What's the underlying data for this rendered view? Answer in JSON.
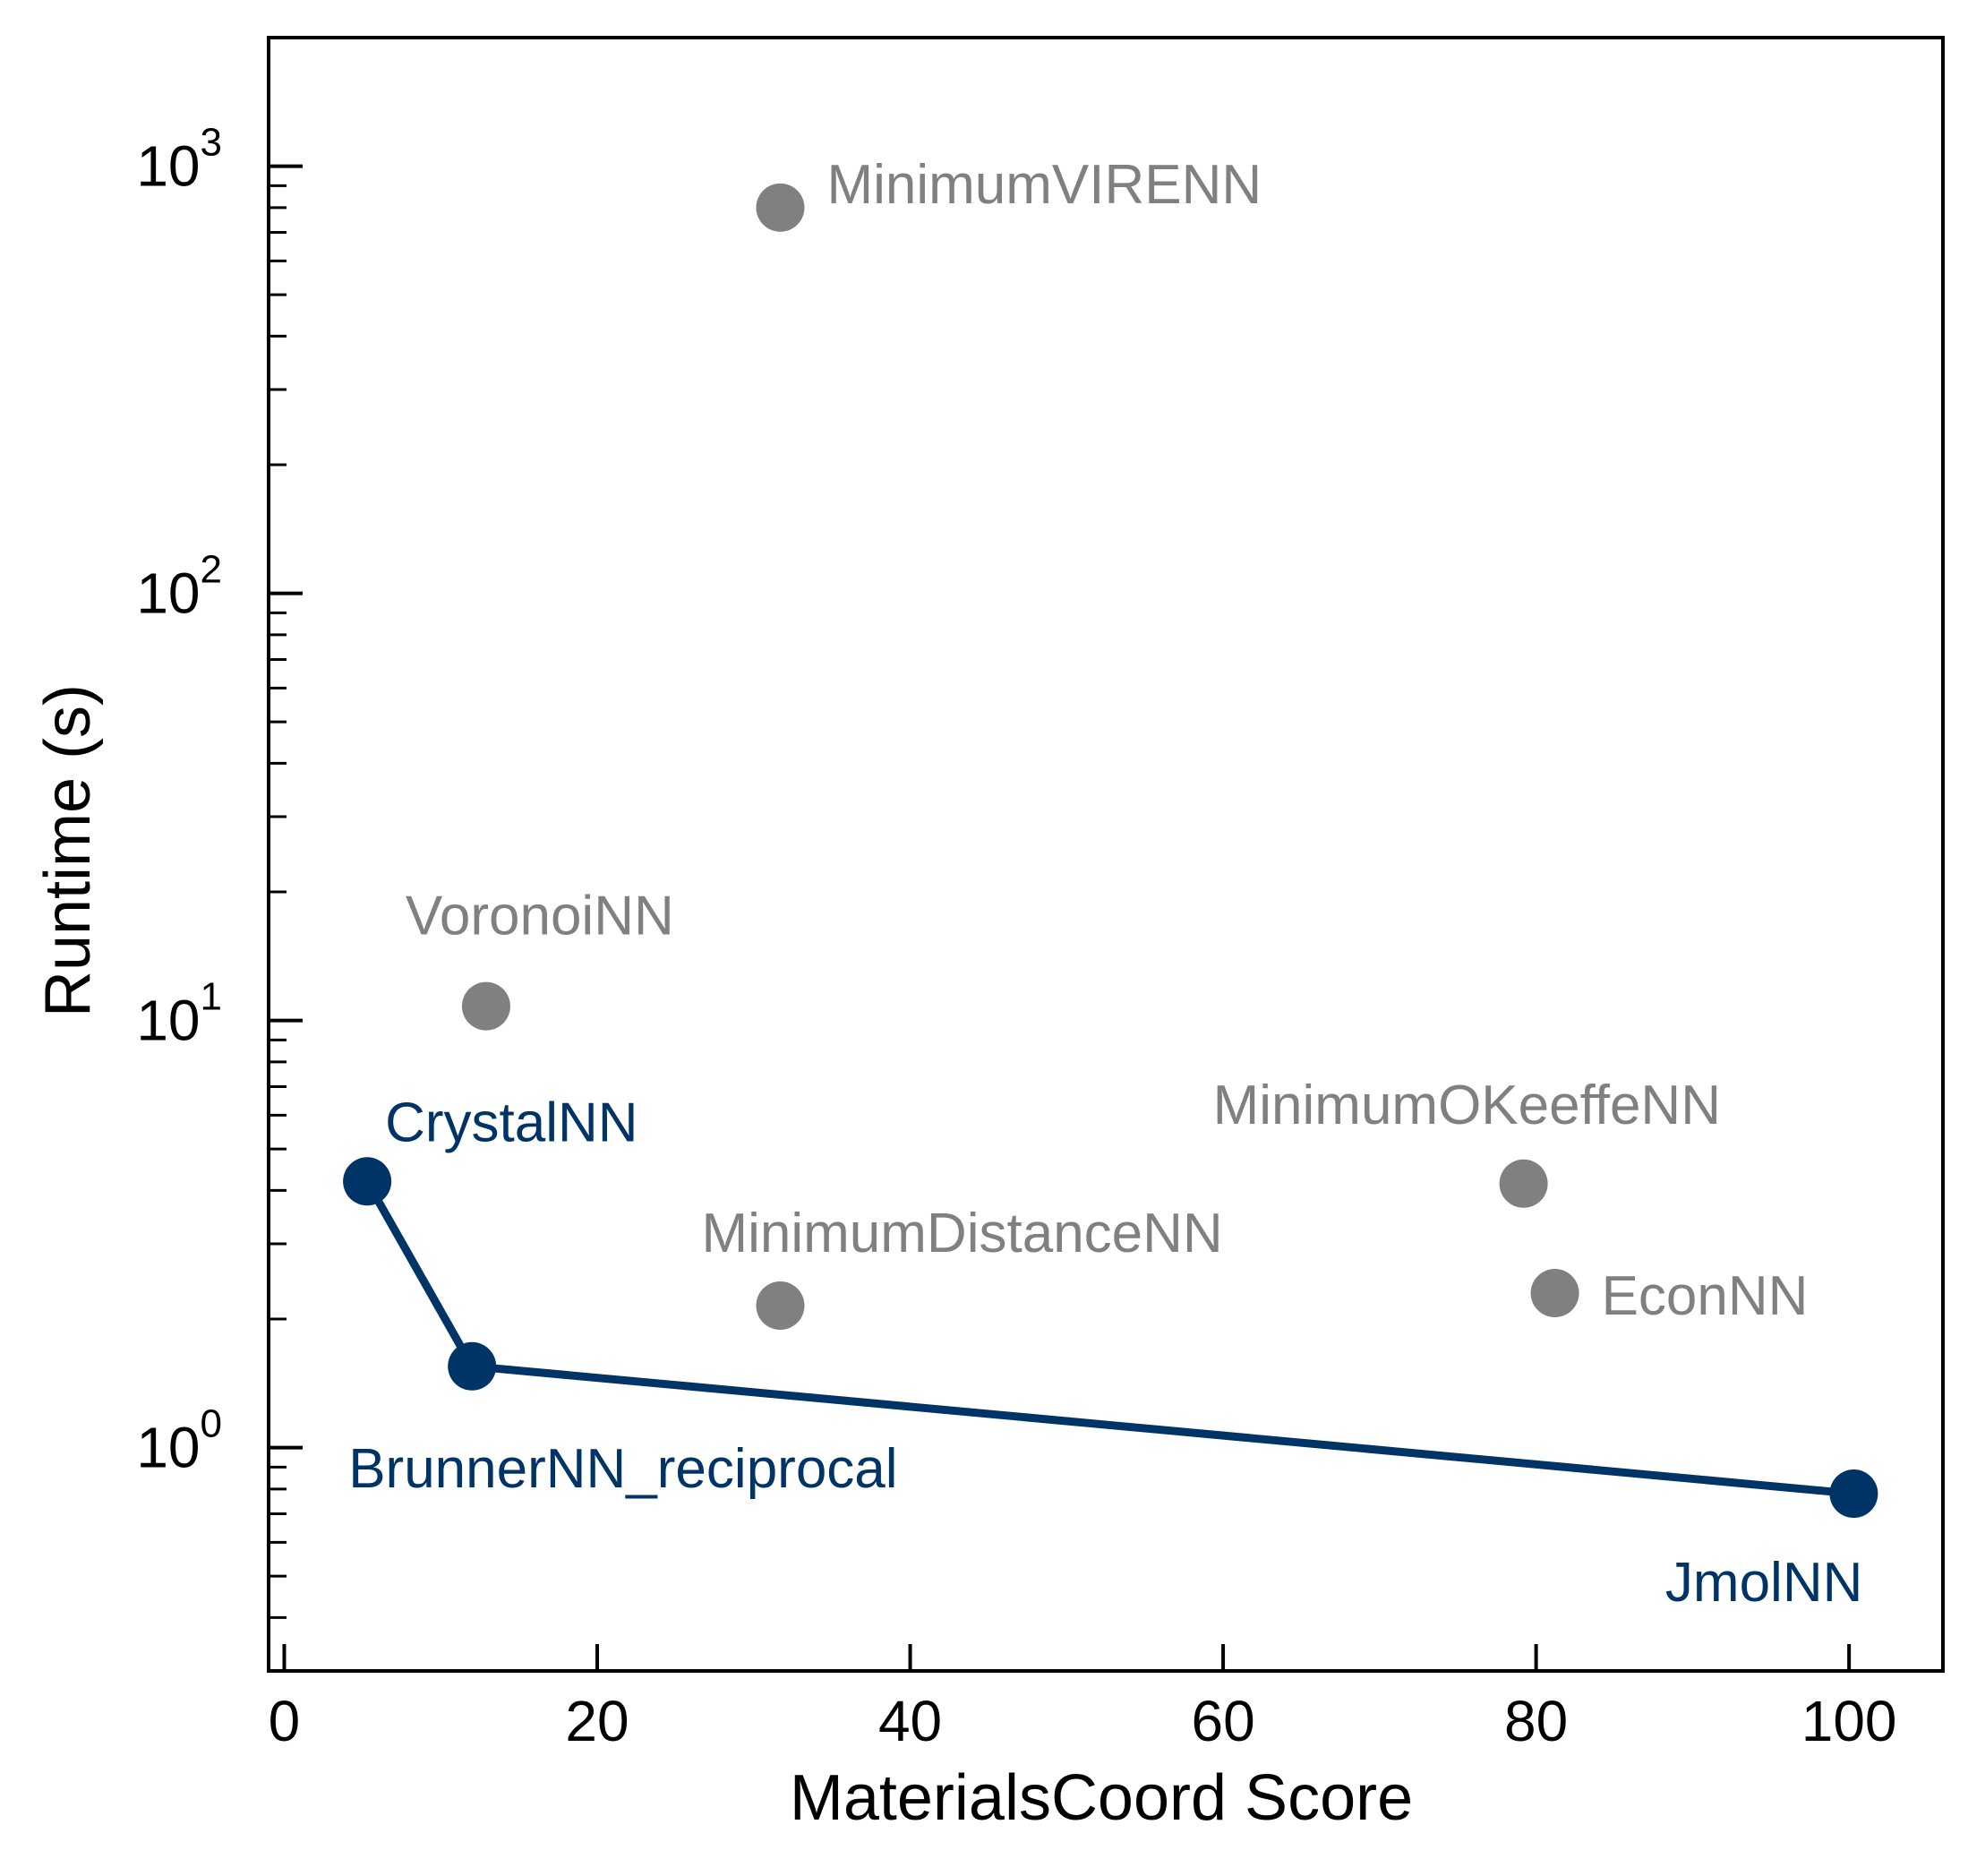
{
  "colors": {
    "pareto": "#003366",
    "other": "#808080",
    "axis": "#000000"
  },
  "chart_data": {
    "type": "scatter",
    "xlabel": "MaterialsCoord Score",
    "ylabel": "Runtime (s)",
    "xlim": [
      -1,
      106
    ],
    "ylim": [
      0.3,
      2000
    ],
    "yscale": "log",
    "grid": false,
    "xticks": [
      0,
      20,
      40,
      60,
      80,
      100
    ],
    "xtick_labels": [
      "0",
      "20",
      "40",
      "60",
      "80",
      "100"
    ],
    "yticks": [
      {
        "value": 1,
        "base": "10",
        "exp": "0"
      },
      {
        "value": 10,
        "base": "10",
        "exp": "1"
      },
      {
        "value": 100,
        "base": "10",
        "exp": "2"
      },
      {
        "value": 1000,
        "base": "10",
        "exp": "3"
      }
    ],
    "points": [
      {
        "name": "CrystalNN",
        "x": 5.3,
        "y": 4.2,
        "group": "pareto",
        "label_pos": "above-right"
      },
      {
        "name": "BrunnerNN_reciprocal",
        "x": 12.0,
        "y": 1.55,
        "group": "pareto",
        "label_pos": "below-left"
      },
      {
        "name": "JmolNN",
        "x": 100.3,
        "y": 0.78,
        "group": "pareto",
        "label_pos": "below-left"
      },
      {
        "name": "VoronoiNN",
        "x": 12.9,
        "y": 10.8,
        "group": "other",
        "label_pos": "above"
      },
      {
        "name": "MinimumVIRENN",
        "x": 31.7,
        "y": 800,
        "group": "other",
        "label_pos": "right"
      },
      {
        "name": "MinimumDistanceNN",
        "x": 31.7,
        "y": 2.15,
        "group": "other",
        "label_pos": "above"
      },
      {
        "name": "MinimumOKeeffeNN",
        "x": 79.2,
        "y": 4.15,
        "group": "other",
        "label_pos": "above"
      },
      {
        "name": "EconNN",
        "x": 81.2,
        "y": 2.3,
        "group": "other",
        "label_pos": "right"
      }
    ],
    "pareto_line": [
      "CrystalNN",
      "BrunnerNN_reciprocal",
      "JmolNN"
    ]
  }
}
